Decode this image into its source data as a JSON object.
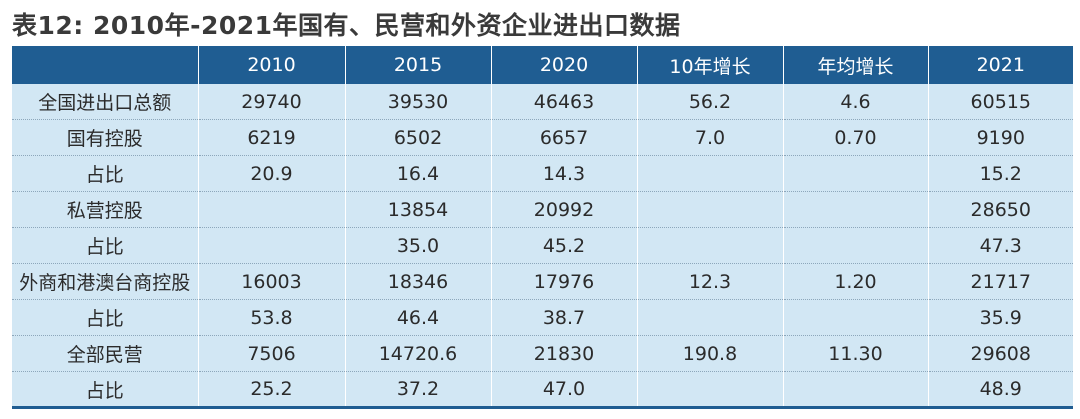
{
  "title": "表12: 2010年-2021年国有、民营和外资企业进出口数据",
  "table": {
    "headers": [
      "",
      "2010",
      "2015",
      "2020",
      "10年增长",
      "年均增长",
      "2021"
    ],
    "rows": [
      [
        "全国进出口总额",
        "29740",
        "39530",
        "46463",
        "56.2",
        "4.6",
        "60515"
      ],
      [
        "国有控股",
        "6219",
        "6502",
        "6657",
        "7.0",
        "0.70",
        "9190"
      ],
      [
        "占比",
        "20.9",
        "16.4",
        "14.3",
        "",
        "",
        "15.2"
      ],
      [
        "私营控股",
        "",
        "13854",
        "20992",
        "",
        "",
        "28650"
      ],
      [
        "占比",
        "",
        "35.0",
        "45.2",
        "",
        "",
        "47.3"
      ],
      [
        "外商和港澳台商控股",
        "16003",
        "18346",
        "17976",
        "12.3",
        "1.20",
        "21717"
      ],
      [
        "占比",
        "53.8",
        "46.4",
        "38.7",
        "",
        "",
        "35.9"
      ],
      [
        "全部民营",
        "7506",
        "14720.6",
        "21830",
        "190.8",
        "11.30",
        "29608"
      ],
      [
        "占比",
        "25.2",
        "37.2",
        "47.0",
        "",
        "",
        "48.9"
      ]
    ]
  }
}
